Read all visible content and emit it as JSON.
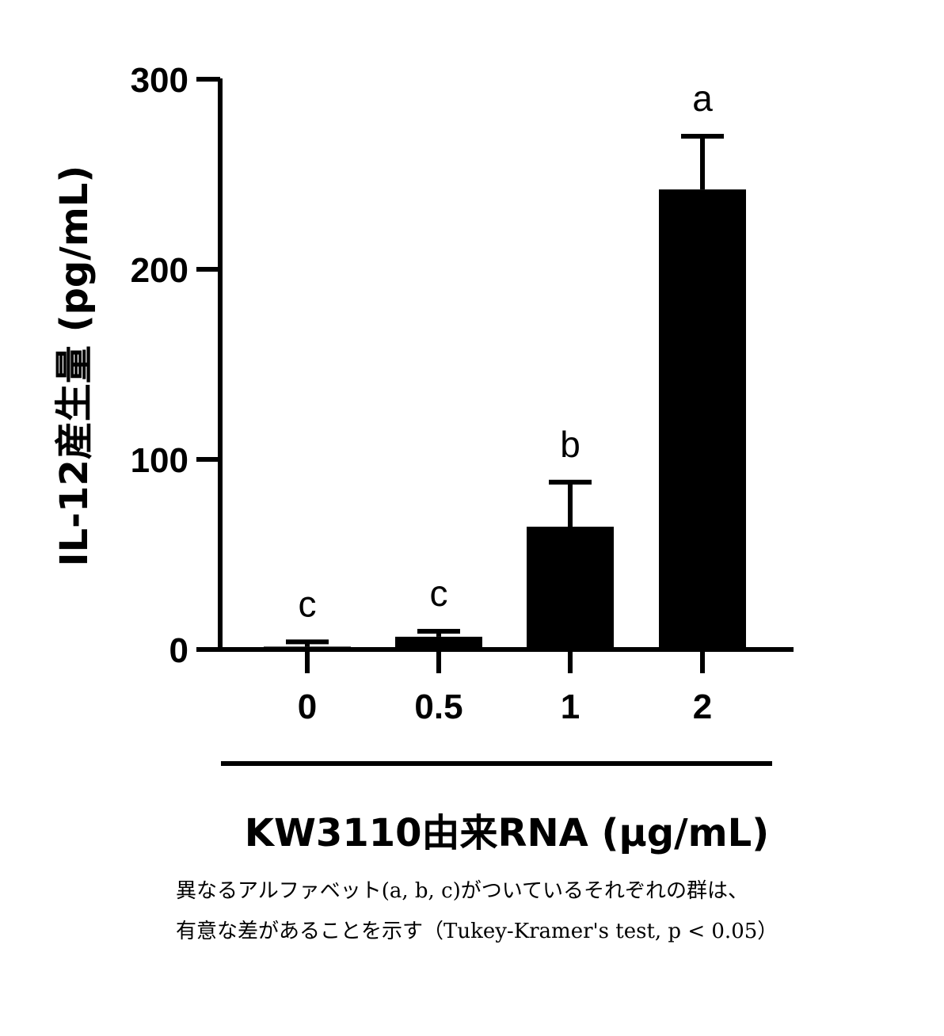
{
  "chart_data": {
    "type": "bar",
    "categories": [
      "0",
      "0.5",
      "1",
      "2"
    ],
    "values": [
      1.5,
      6.7,
      64.6,
      242
    ],
    "error_upper": [
      4,
      9.6,
      88,
      270
    ],
    "significance_letters": [
      "c",
      "c",
      "b",
      "a"
    ],
    "xlabel": "KW3110由来RNA (μg/mL)",
    "ylabel": "IL-12産生量 (pg/mL)",
    "ylim": [
      0,
      300
    ],
    "yticks": [
      "0",
      "100",
      "200",
      "300"
    ],
    "grid": false,
    "bar_color": "#000000"
  },
  "footnote": {
    "line1": "異なるアルファベット(a, b, c)がついているそれぞれの群は、",
    "line2": "有意な差があることを示す（Tukey-Kramer's test, p < 0.05）"
  }
}
